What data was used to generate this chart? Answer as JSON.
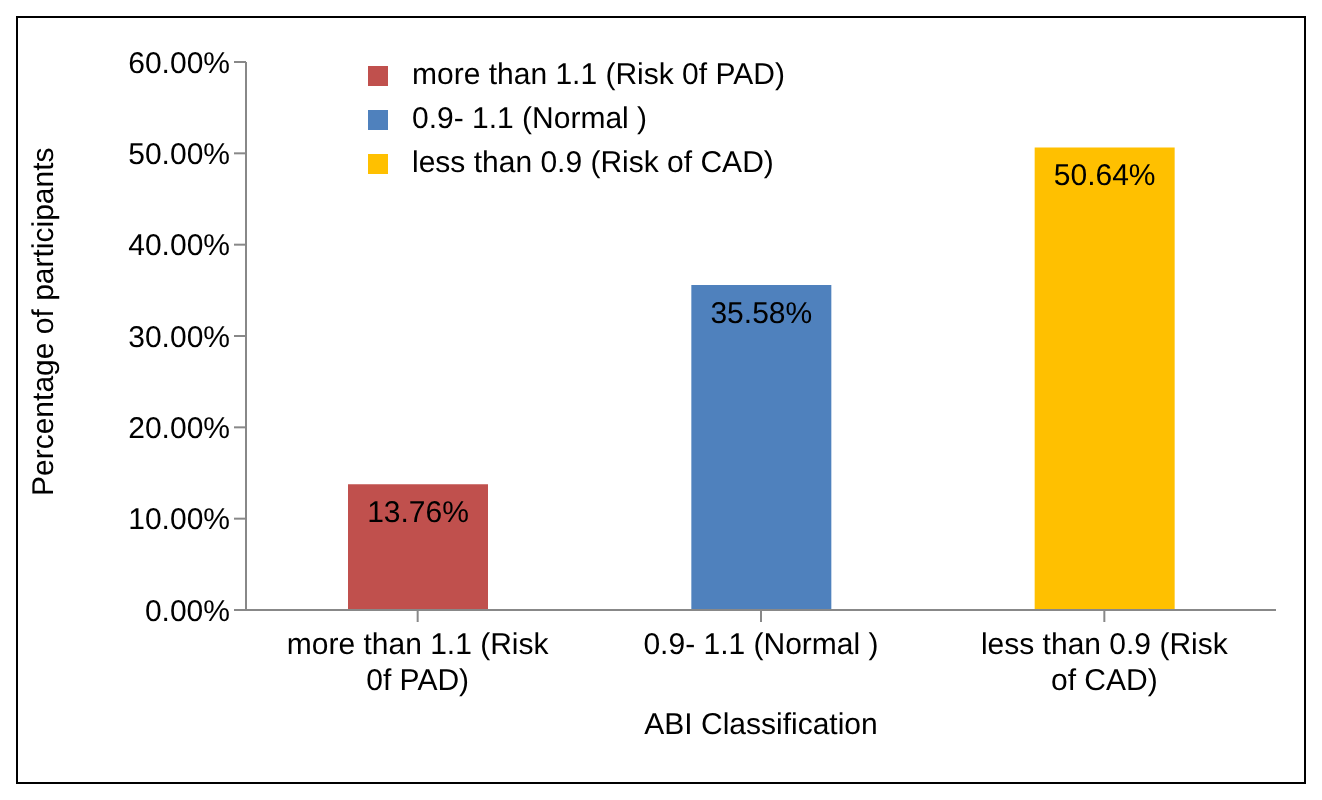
{
  "chart_data": {
    "type": "bar",
    "xlabel": "ABI Classification",
    "ylabel": "Percentage of participants",
    "categories": [
      "more than 1.1 (Risk 0f PAD)",
      "0.9- 1.1 (Normal )",
      "less than 0.9 (Risk of CAD)"
    ],
    "series": [
      {
        "name": "more than 1.1 (Risk 0f PAD)",
        "color": "#c0504d",
        "values": [
          13.76,
          null,
          null
        ],
        "value_labels": [
          "13.76%",
          null,
          null
        ]
      },
      {
        "name": "0.9- 1.1 (Normal )",
        "color": "#4f81bd",
        "values": [
          null,
          35.58,
          null
        ],
        "value_labels": [
          null,
          "35.58%",
          null
        ]
      },
      {
        "name": "less than 0.9 (Risk of CAD)",
        "color": "#ffc000",
        "values": [
          null,
          null,
          50.64
        ],
        "value_labels": [
          null,
          null,
          "50.64%"
        ]
      }
    ],
    "stacked": true,
    "ylim": [
      0,
      60
    ],
    "yticks": [
      {
        "value": 0,
        "label": "0.00%"
      },
      {
        "value": 10,
        "label": "10.00%"
      },
      {
        "value": 20,
        "label": "20.00%"
      },
      {
        "value": 30,
        "label": "30.00%"
      },
      {
        "value": 40,
        "label": "40.00%"
      },
      {
        "value": 50,
        "label": "50.00%"
      },
      {
        "value": 60,
        "label": "60.00%"
      }
    ],
    "grid": false,
    "legend": "top left"
  }
}
